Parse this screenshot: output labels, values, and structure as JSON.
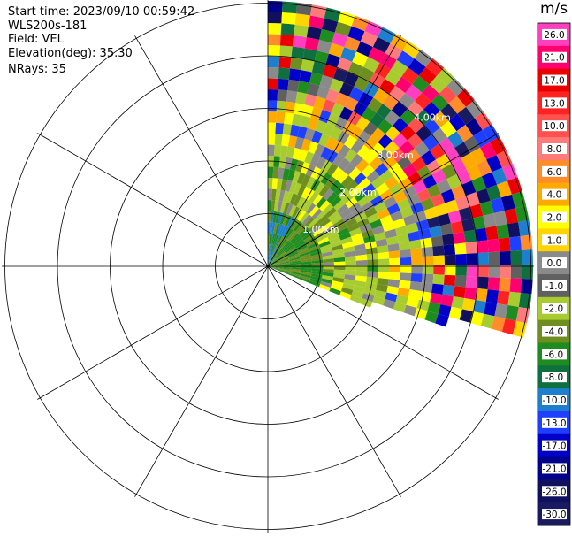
{
  "header": {
    "start_time": "Start time: 2023/09/10 00:59:42",
    "instrument": "WLS200s-181",
    "field": "Field: VEL",
    "elevation": "Elevation(deg): 35.30",
    "nrays": "NRays: 35"
  },
  "colorbar": {
    "title": "m/s",
    "ticks": [
      "26.0",
      "21.0",
      "17.0",
      "13.0",
      "10.0",
      "8.0",
      "6.0",
      "4.0",
      "2.0",
      "1.0",
      "0.0",
      "-1.0",
      "-2.0",
      "-4.0",
      "-6.0",
      "-8.0",
      "-10.0",
      "-13.0",
      "-17.0",
      "-21.0",
      "-26.0",
      "-30.0"
    ],
    "colors": [
      "#ff3fbf",
      "#ff0070",
      "#ea0000",
      "#ff2222",
      "#ff5050",
      "#ff7b7b",
      "#ff8c2a",
      "#ffaa00",
      "#ffff00",
      "#ffd400",
      "#8a8a8a",
      "#606060",
      "#a8cc30",
      "#6e8e20",
      "#1e8c1e",
      "#0f6f3f",
      "#1e7fcf",
      "#1f3fff",
      "#0000c8",
      "#00008a",
      "#10105e",
      "#1a1a60"
    ]
  },
  "chart_data": {
    "type": "ppi",
    "field": "VEL",
    "units": "m/s",
    "range_ring_labels": [
      "1.00km",
      "2.00km",
      "3.00km",
      "4.00km"
    ],
    "azimuth_range_deg": [
      0,
      112
    ],
    "nrays": 35,
    "color_range": [
      -30,
      26
    ],
    "grid": true
  }
}
